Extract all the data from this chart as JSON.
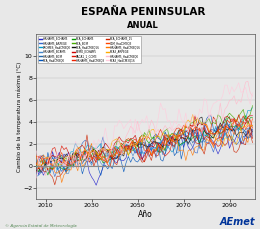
{
  "title": "ESPAÑA PENINSULAR",
  "subtitle": "ANUAL",
  "xlabel": "Año",
  "ylabel": "Cambio de la temperatura máxima (°C)",
  "xlim": [
    2006,
    2101
  ],
  "ylim": [
    -3,
    12
  ],
  "yticks": [
    -2,
    0,
    2,
    4,
    6,
    8,
    10
  ],
  "xticks": [
    2010,
    2030,
    2050,
    2070,
    2090
  ],
  "x_start": 2006,
  "x_end": 2100,
  "background_color": "#e8e8e8",
  "plot_bg_color": "#e8e8e8",
  "zero_line_color": "#888888",
  "footer_text": "© Agencia Estatal de Meteorología",
  "colors": [
    "#2222cc",
    "#3366cc",
    "#0099cc",
    "#4488cc",
    "#2266aa",
    "#0055bb",
    "#009900",
    "#44aa00",
    "#111111",
    "#cc0000",
    "#dd1100",
    "#ee2200",
    "#cc2200",
    "#ff4400",
    "#ff7700",
    "#ffaa00",
    "#ffbbcc",
    "#ffccdd"
  ],
  "n_lines": 18,
  "seed": 12
}
